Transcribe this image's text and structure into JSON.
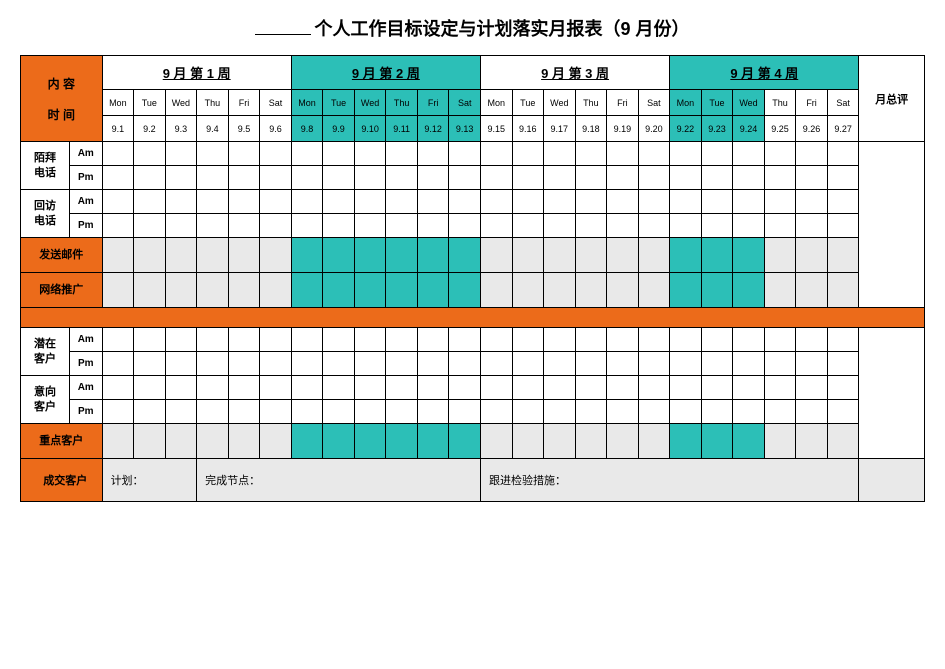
{
  "colors": {
    "orange": "#ec6b1a",
    "teal": "#2cbfb7",
    "gray": "#e9e9e9",
    "border": "#000000",
    "background": "#ffffff"
  },
  "title_suffix": "个人工作目标设定与计划落实月报表（9 月份）",
  "side_header": {
    "line1": "内 容",
    "line2": "时 间"
  },
  "summary_header": "月总评",
  "weeks": [
    {
      "label": "9 月 第 1 周",
      "highlighted": false
    },
    {
      "label": "9 月 第 2 周",
      "highlighted": true
    },
    {
      "label": "9 月 第 3 周",
      "highlighted": false
    },
    {
      "label": "9 月 第 4 周",
      "highlighted": true
    }
  ],
  "days_of_week": [
    "Mon",
    "Tue",
    "Wed",
    "Thu",
    "Fri",
    "Sat"
  ],
  "dates": [
    "9.1",
    "9.2",
    "9.3",
    "9.4",
    "9.5",
    "9.6",
    "9.8",
    "9.9",
    "9.10",
    "9.11",
    "9.12",
    "9.13",
    "9.15",
    "9.16",
    "9.17",
    "9.18",
    "9.19",
    "9.20",
    "9.22",
    "9.23",
    "9.24",
    "9.25",
    "9.26",
    "9.27"
  ],
  "day_highlight": [
    false,
    false,
    false,
    false,
    false,
    false,
    true,
    true,
    true,
    true,
    true,
    true,
    false,
    false,
    false,
    false,
    false,
    false,
    true,
    true,
    true,
    false,
    false,
    false
  ],
  "rows_top": [
    {
      "label": "陌拜\n电话",
      "sub": [
        "Am",
        "Pm"
      ],
      "side_orange": false
    },
    {
      "label": "回访\n电话",
      "sub": [
        "Am",
        "Pm"
      ],
      "side_orange": false
    }
  ],
  "rows_top_single": [
    {
      "label": "发送邮件",
      "side_orange": true,
      "label_gray_bg": true
    },
    {
      "label": "网络推广",
      "side_orange": true,
      "label_gray_bg": true
    }
  ],
  "rows_bottom": [
    {
      "label": "潜在\n客户",
      "sub": [
        "Am",
        "Pm"
      ],
      "side_orange": false
    },
    {
      "label": "意向\n客户",
      "sub": [
        "Am",
        "Pm"
      ],
      "side_orange": false
    }
  ],
  "rows_bottom_single": [
    {
      "label": "重点客户",
      "side_orange": true,
      "has_highlight_cells": true
    }
  ],
  "footer": {
    "side_label": "成交客户",
    "plan": "计划：",
    "node": "完成节点：",
    "measure": "跟进检验措施："
  }
}
